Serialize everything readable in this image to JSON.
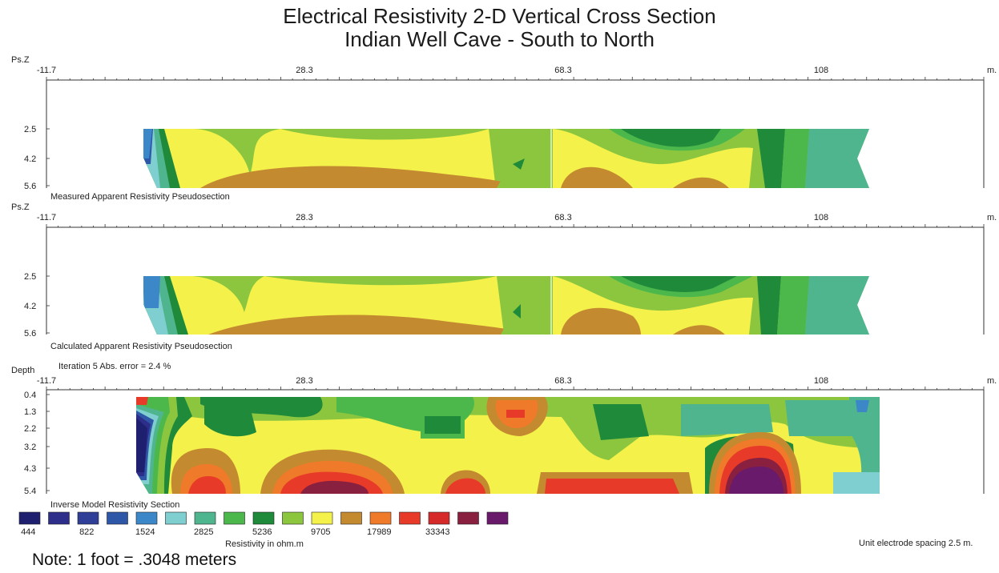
{
  "title_line1": "Electrical Resistivity 2-D Vertical Cross Section",
  "title_line2": "Indian Well Cave - South to North",
  "note": "Note: 1 foot = .3048 meters",
  "unit_spacing": "Unit electrode spacing 2.5 m.",
  "chart_data": [
    {
      "type": "heatmap",
      "panel": "measured",
      "caption": "Measured Apparent Resistivity Pseudosection",
      "y_axis_label": "Ps.Z",
      "x_unit": "m.",
      "x_tick_labels": [
        "-11.7",
        "28.3",
        "68.3",
        "108"
      ],
      "y_tick_labels": [
        "2.5",
        "4.2",
        "5.6"
      ],
      "x_range": [
        -11.7,
        135
      ],
      "y_range": [
        0,
        5.6
      ],
      "data_extent_x": [
        3,
        114
      ],
      "grid": false
    },
    {
      "type": "heatmap",
      "panel": "calculated",
      "caption": "Calculated Apparent Resistivity Pseudosection",
      "y_axis_label": "Ps.Z",
      "x_unit": "m.",
      "x_tick_labels": [
        "-11.7",
        "28.3",
        "68.3",
        "108"
      ],
      "y_tick_labels": [
        "2.5",
        "4.2",
        "5.6"
      ],
      "x_range": [
        -11.7,
        135
      ],
      "y_range": [
        0,
        5.6
      ],
      "data_extent_x": [
        3,
        114
      ],
      "grid": false
    },
    {
      "type": "heatmap",
      "panel": "inverse",
      "caption": "Inverse Model Resistivity Section",
      "y_axis_label": "Depth",
      "iteration_text": "Iteration 5 Abs. error = 2.4 %",
      "x_unit": "m.",
      "x_tick_labels": [
        "-11.7",
        "28.3",
        "68.3",
        "108"
      ],
      "y_tick_labels": [
        "0.4",
        "1.3",
        "2.2",
        "3.2",
        "4.3",
        "5.4"
      ],
      "x_range": [
        -11.7,
        135
      ],
      "y_range": [
        0,
        5.4
      ],
      "data_extent_x": [
        2,
        116
      ],
      "grid": false
    }
  ],
  "legend": {
    "colors": [
      "#1f1f70",
      "#2d2d8a",
      "#2f3f98",
      "#2f57a8",
      "#3c87c8",
      "#7fcfd0",
      "#4fb58e",
      "#4cb84c",
      "#1f8a3a",
      "#8cc63f",
      "#f4f14a",
      "#c48a30",
      "#ef7a2a",
      "#e83a28",
      "#d62a2a",
      "#8a2040",
      "#6a1a6a"
    ],
    "labels": [
      "444",
      "822",
      "1524",
      "2825",
      "5236",
      "9705",
      "17989",
      "33343"
    ],
    "label_slots": [
      0,
      2,
      4,
      6,
      8,
      10,
      12,
      14
    ],
    "caption": "Resistivity in ohm.m"
  }
}
